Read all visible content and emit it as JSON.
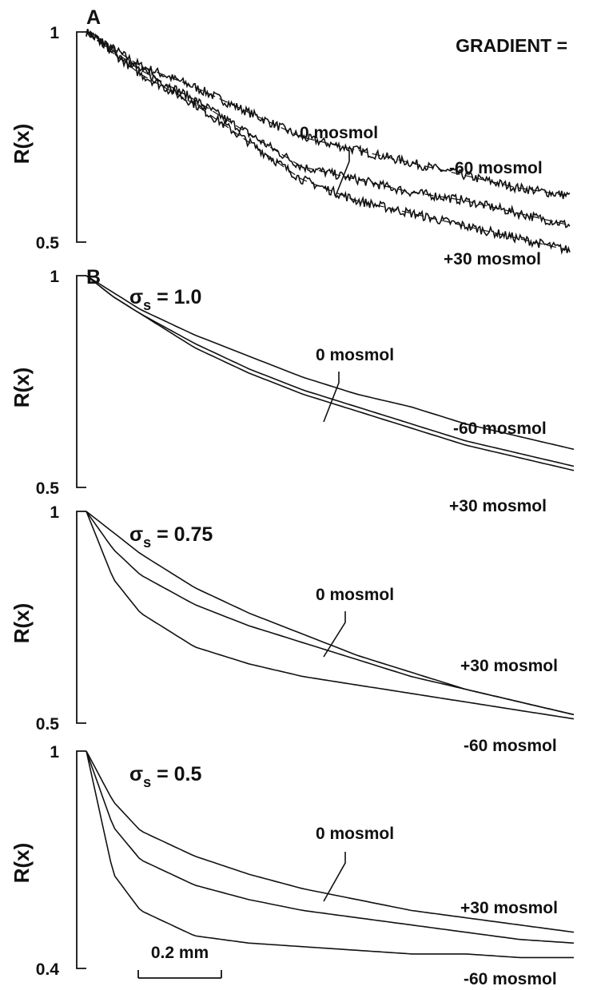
{
  "figure": {
    "heading": "GRADIENT =",
    "scale_bar": {
      "label": "0.2 mm",
      "length_mm": 0.2
    }
  },
  "chart_data": [
    {
      "type": "line",
      "panel": "A",
      "ylabel": "R(x)",
      "yticks": [
        "1",
        "0.5"
      ],
      "ylim": [
        0.5,
        1
      ],
      "xlim": [
        0,
        0.9
      ],
      "x_units": "mm",
      "note": "noisy measured traces with dashed fitted curves",
      "labels": {
        "pointer": "0 mosmol",
        "upper": "-60 mosmol",
        "lower": "+30 mosmol"
      },
      "series": [
        {
          "name": "-60 mosmol",
          "x": [
            0,
            0.1,
            0.2,
            0.3,
            0.4,
            0.5,
            0.6,
            0.7,
            0.8,
            0.9
          ],
          "values": [
            1.0,
            0.92,
            0.87,
            0.81,
            0.75,
            0.72,
            0.69,
            0.66,
            0.63,
            0.61
          ]
        },
        {
          "name": "0 mosmol",
          "x": [
            0,
            0.1,
            0.2,
            0.3,
            0.4,
            0.5,
            0.6,
            0.7,
            0.8,
            0.9
          ],
          "values": [
            1.0,
            0.91,
            0.84,
            0.76,
            0.68,
            0.65,
            0.62,
            0.6,
            0.57,
            0.54
          ]
        },
        {
          "name": "+30 mosmol",
          "x": [
            0,
            0.1,
            0.2,
            0.3,
            0.4,
            0.5,
            0.6,
            0.7,
            0.8,
            0.9
          ],
          "values": [
            1.0,
            0.9,
            0.83,
            0.74,
            0.65,
            0.6,
            0.57,
            0.54,
            0.51,
            0.48
          ]
        }
      ]
    },
    {
      "type": "line",
      "panel": "B",
      "title": "σs = 1.0",
      "ylabel": "R(x)",
      "yticks": [
        "1",
        "0.5"
      ],
      "ylim": [
        0.5,
        1
      ],
      "xlim": [
        0,
        0.9
      ],
      "x_units": "mm",
      "labels": {
        "pointer": "0 mosmol",
        "upper": "-60 mosmol",
        "lower": "+30 mosmol"
      },
      "series": [
        {
          "name": "-60 mosmol",
          "x": [
            0,
            0.05,
            0.1,
            0.2,
            0.3,
            0.4,
            0.5,
            0.6,
            0.7,
            0.8,
            0.9
          ],
          "values": [
            1.0,
            0.96,
            0.92,
            0.86,
            0.81,
            0.76,
            0.72,
            0.69,
            0.65,
            0.62,
            0.59
          ]
        },
        {
          "name": "0 mosmol",
          "x": [
            0,
            0.05,
            0.1,
            0.2,
            0.3,
            0.4,
            0.5,
            0.6,
            0.7,
            0.8,
            0.9
          ],
          "values": [
            1.0,
            0.95,
            0.91,
            0.84,
            0.78,
            0.73,
            0.69,
            0.65,
            0.61,
            0.58,
            0.55
          ]
        },
        {
          "name": "+30 mosmol",
          "x": [
            0,
            0.05,
            0.1,
            0.2,
            0.3,
            0.4,
            0.5,
            0.6,
            0.7,
            0.8,
            0.9
          ],
          "values": [
            1.0,
            0.95,
            0.91,
            0.83,
            0.77,
            0.72,
            0.68,
            0.64,
            0.6,
            0.57,
            0.54
          ]
        }
      ]
    },
    {
      "type": "line",
      "title": "σs = 0.75",
      "ylabel": "R(x)",
      "yticks": [
        "1",
        "0.5"
      ],
      "ylim": [
        0.5,
        1
      ],
      "xlim": [
        0,
        0.9
      ],
      "x_units": "mm",
      "labels": {
        "pointer": "0 mosmol",
        "upper": "+30 mosmol",
        "lower": "-60 mosmol"
      },
      "series": [
        {
          "name": "+30 mosmol",
          "x": [
            0,
            0.05,
            0.1,
            0.2,
            0.3,
            0.4,
            0.5,
            0.6,
            0.7,
            0.8,
            0.9
          ],
          "values": [
            1.0,
            0.95,
            0.9,
            0.82,
            0.76,
            0.71,
            0.66,
            0.62,
            0.58,
            0.55,
            0.52
          ]
        },
        {
          "name": "0 mosmol",
          "x": [
            0,
            0.05,
            0.1,
            0.2,
            0.3,
            0.4,
            0.5,
            0.6,
            0.7,
            0.8,
            0.9
          ],
          "values": [
            1.0,
            0.91,
            0.85,
            0.78,
            0.73,
            0.69,
            0.65,
            0.61,
            0.58,
            0.55,
            0.52
          ]
        },
        {
          "name": "-60 mosmol",
          "x": [
            0,
            0.05,
            0.1,
            0.2,
            0.3,
            0.4,
            0.5,
            0.6,
            0.7,
            0.8,
            0.9
          ],
          "values": [
            1.0,
            0.84,
            0.76,
            0.68,
            0.64,
            0.61,
            0.59,
            0.57,
            0.55,
            0.53,
            0.51
          ]
        }
      ]
    },
    {
      "type": "line",
      "title": "σs = 0.5",
      "ylabel": "R(x)",
      "yticks": [
        "1",
        "0.4"
      ],
      "ylim": [
        0.4,
        1
      ],
      "xlim": [
        0,
        0.9
      ],
      "x_units": "mm",
      "labels": {
        "pointer": "0 mosmol",
        "upper": "+30 mosmol",
        "lower": "-60 mosmol"
      },
      "series": [
        {
          "name": "+30 mosmol",
          "x": [
            0,
            0.05,
            0.1,
            0.2,
            0.3,
            0.4,
            0.5,
            0.6,
            0.7,
            0.8,
            0.9
          ],
          "values": [
            1.0,
            0.86,
            0.78,
            0.71,
            0.66,
            0.62,
            0.59,
            0.56,
            0.54,
            0.52,
            0.5
          ]
        },
        {
          "name": "0 mosmol",
          "x": [
            0,
            0.05,
            0.1,
            0.2,
            0.3,
            0.4,
            0.5,
            0.6,
            0.7,
            0.8,
            0.9
          ],
          "values": [
            1.0,
            0.79,
            0.7,
            0.63,
            0.59,
            0.56,
            0.54,
            0.52,
            0.5,
            0.48,
            0.47
          ]
        },
        {
          "name": "-60 mosmol",
          "x": [
            0,
            0.05,
            0.1,
            0.2,
            0.3,
            0.4,
            0.5,
            0.6,
            0.7,
            0.8,
            0.9
          ],
          "values": [
            1.0,
            0.66,
            0.56,
            0.49,
            0.47,
            0.46,
            0.45,
            0.44,
            0.44,
            0.43,
            0.43
          ]
        }
      ]
    }
  ]
}
